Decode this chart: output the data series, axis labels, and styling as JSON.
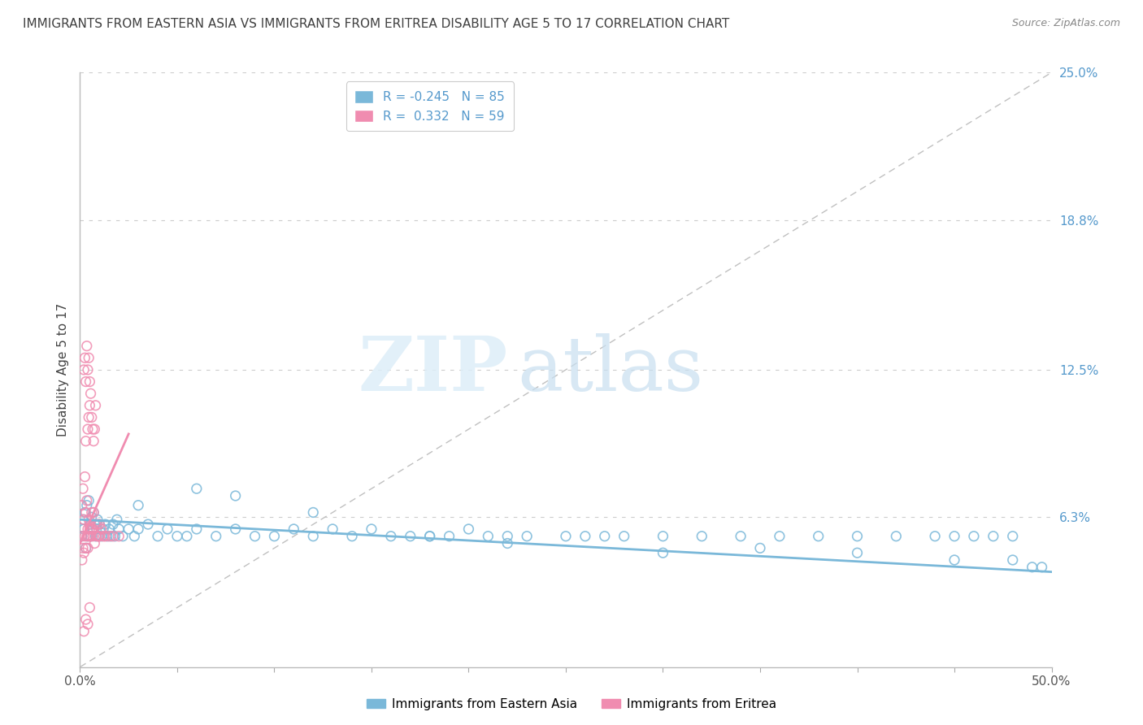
{
  "title": "IMMIGRANTS FROM EASTERN ASIA VS IMMIGRANTS FROM ERITREA DISABILITY AGE 5 TO 17 CORRELATION CHART",
  "source": "Source: ZipAtlas.com",
  "ylabel": "Disability Age 5 to 17",
  "xmin": 0.0,
  "xmax": 50.0,
  "ymin": 0.0,
  "ymax": 25.0,
  "blue_label": "Immigrants from Eastern Asia",
  "pink_label": "Immigrants from Eritrea",
  "blue_color": "#7ab8d9",
  "pink_color": "#f08cb0",
  "blue_R": -0.245,
  "blue_N": 85,
  "pink_R": 0.332,
  "pink_N": 59,
  "watermark_zip": "ZIP",
  "watermark_atlas": "atlas",
  "background_color": "#ffffff",
  "grid_color": "#cccccc",
  "title_color": "#404040",
  "right_axis_color": "#5599cc",
  "blue_trend_x": [
    0.0,
    50.0
  ],
  "blue_trend_y": [
    6.2,
    4.0
  ],
  "pink_trend_x": [
    0.0,
    2.5
  ],
  "pink_trend_y": [
    5.2,
    9.8
  ],
  "blue_scatter_x": [
    0.1,
    0.15,
    0.2,
    0.25,
    0.3,
    0.35,
    0.4,
    0.45,
    0.5,
    0.55,
    0.6,
    0.65,
    0.7,
    0.75,
    0.8,
    0.85,
    0.9,
    0.95,
    1.0,
    1.1,
    1.2,
    1.3,
    1.4,
    1.5,
    1.6,
    1.7,
    1.8,
    1.9,
    2.0,
    2.2,
    2.5,
    2.8,
    3.0,
    3.5,
    4.0,
    4.5,
    5.0,
    5.5,
    6.0,
    7.0,
    8.0,
    9.0,
    10.0,
    11.0,
    12.0,
    13.0,
    14.0,
    15.0,
    16.0,
    17.0,
    18.0,
    19.0,
    20.0,
    21.0,
    22.0,
    23.0,
    25.0,
    27.0,
    28.0,
    30.0,
    32.0,
    34.0,
    36.0,
    38.0,
    40.0,
    42.0,
    44.0,
    45.0,
    46.0,
    47.0,
    48.0,
    49.0,
    6.0,
    3.0,
    8.0,
    12.0,
    18.0,
    22.0,
    26.0,
    30.0,
    35.0,
    40.0,
    45.0,
    48.0,
    49.5
  ],
  "blue_scatter_y": [
    5.5,
    6.2,
    5.8,
    6.5,
    5.0,
    6.8,
    5.5,
    7.0,
    6.0,
    5.5,
    6.3,
    5.8,
    6.5,
    6.0,
    5.5,
    5.8,
    6.2,
    5.5,
    6.0,
    5.5,
    5.8,
    6.0,
    5.5,
    5.8,
    5.5,
    6.0,
    5.5,
    6.2,
    5.8,
    5.5,
    5.8,
    5.5,
    5.8,
    6.0,
    5.5,
    5.8,
    5.5,
    5.5,
    5.8,
    5.5,
    5.8,
    5.5,
    5.5,
    5.8,
    5.5,
    5.8,
    5.5,
    5.8,
    5.5,
    5.5,
    5.5,
    5.5,
    5.8,
    5.5,
    5.5,
    5.5,
    5.5,
    5.5,
    5.5,
    5.5,
    5.5,
    5.5,
    5.5,
    5.5,
    5.5,
    5.5,
    5.5,
    5.5,
    5.5,
    5.5,
    5.5,
    4.2,
    7.5,
    6.8,
    7.2,
    6.5,
    5.5,
    5.2,
    5.5,
    4.8,
    5.0,
    4.8,
    4.5,
    4.5,
    4.2
  ],
  "pink_scatter_x": [
    0.05,
    0.1,
    0.1,
    0.15,
    0.15,
    0.2,
    0.2,
    0.25,
    0.25,
    0.3,
    0.3,
    0.35,
    0.35,
    0.4,
    0.4,
    0.45,
    0.45,
    0.5,
    0.5,
    0.55,
    0.6,
    0.6,
    0.65,
    0.7,
    0.7,
    0.75,
    0.8,
    0.85,
    0.9,
    0.95,
    1.0,
    1.0,
    1.1,
    1.2,
    1.3,
    1.5,
    1.7,
    2.0,
    0.3,
    0.4,
    0.45,
    0.5,
    0.55,
    0.6,
    0.65,
    0.7,
    0.75,
    0.8,
    0.2,
    0.25,
    0.3,
    0.35,
    0.4,
    0.45,
    0.5,
    0.2,
    0.3,
    0.4,
    0.5
  ],
  "pink_scatter_y": [
    5.5,
    4.5,
    6.8,
    5.0,
    7.5,
    4.8,
    6.2,
    5.5,
    8.0,
    5.0,
    6.5,
    5.5,
    7.0,
    5.0,
    5.8,
    6.2,
    5.5,
    6.0,
    5.8,
    5.5,
    5.8,
    6.5,
    5.5,
    5.8,
    6.5,
    5.2,
    6.0,
    5.5,
    6.0,
    5.5,
    6.0,
    5.5,
    5.8,
    5.5,
    5.5,
    5.5,
    5.5,
    5.5,
    9.5,
    10.0,
    10.5,
    11.0,
    11.5,
    10.5,
    10.0,
    9.5,
    10.0,
    11.0,
    12.5,
    13.0,
    12.0,
    13.5,
    12.5,
    13.0,
    12.0,
    1.5,
    2.0,
    1.8,
    2.5
  ]
}
